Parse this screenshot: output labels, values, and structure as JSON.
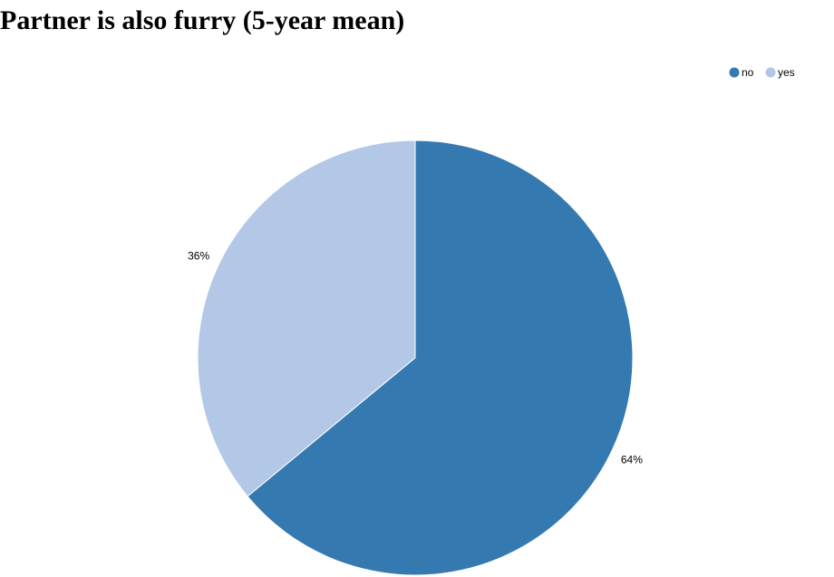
{
  "chart_data": {
    "type": "pie",
    "title": "Partner is also furry (5-year mean)",
    "categories": [
      "no",
      "yes"
    ],
    "values": [
      64,
      36
    ],
    "labels": [
      "64%",
      "36%"
    ],
    "colors": [
      "#3579b1",
      "#b2c8e6"
    ],
    "legend": {
      "position": "top-right",
      "entries": [
        "no",
        "yes"
      ]
    }
  }
}
